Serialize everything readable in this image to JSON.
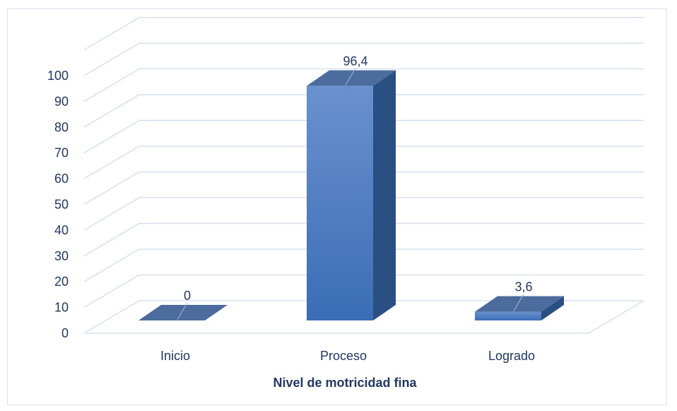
{
  "chart_data": {
    "type": "bar",
    "style": "3d-column",
    "categories": [
      "Inicio",
      "Proceso",
      "Logrado"
    ],
    "values": [
      0,
      96.4,
      3.6
    ],
    "data_labels": [
      "0",
      "96,4",
      "3,6"
    ],
    "xlabel": "Nivel de motricidad fina",
    "ylabel": "",
    "ylim": [
      0,
      100
    ],
    "yticks": [
      0,
      10,
      20,
      30,
      40,
      50,
      60,
      70,
      80,
      90,
      100
    ],
    "grid": true,
    "legend": "none",
    "colors": {
      "bar_front": "#3f75c0",
      "bar_side": "#2a4f82",
      "bar_top": "#4c6c9e",
      "grid": "#d6e1f0",
      "text": "#1f3864"
    }
  }
}
